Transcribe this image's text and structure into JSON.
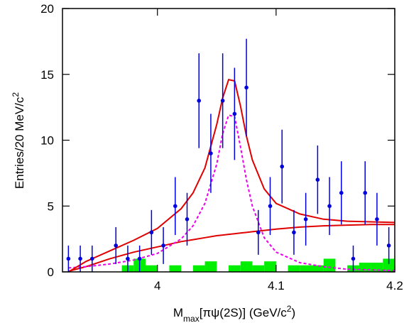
{
  "chart_data": {
    "type": "scatter",
    "xlabel_parts": [
      "M",
      "max",
      "[πψ(2S)] (GeV/c",
      "2",
      ")"
    ],
    "ylabel_parts": [
      "Entries/20 MeV/c",
      "2"
    ],
    "xlim": [
      3.92,
      4.2
    ],
    "ylim": [
      0,
      20
    ],
    "xticks": [
      4,
      4.1,
      4.2
    ],
    "yticks": [
      0,
      5,
      10,
      15,
      20
    ],
    "points": {
      "color": "#0000dd",
      "x": [
        3.925,
        3.935,
        3.945,
        3.965,
        3.975,
        3.985,
        3.995,
        4.005,
        4.015,
        4.025,
        4.035,
        4.045,
        4.055,
        4.065,
        4.075,
        4.085,
        4.095,
        4.105,
        4.115,
        4.125,
        4.135,
        4.145,
        4.155,
        4.165,
        4.175,
        4.185,
        4.195
      ],
      "values": [
        1,
        1,
        1,
        2,
        1,
        1,
        3,
        2,
        5,
        4,
        13,
        9,
        13,
        12,
        14,
        3,
        5,
        8,
        3,
        4,
        7,
        5,
        6,
        1,
        6,
        4,
        2
      ],
      "errors": [
        1,
        1,
        1,
        1.4,
        1,
        1,
        1.7,
        1.4,
        2.2,
        2,
        3.6,
        3,
        3.6,
        3.5,
        3.7,
        1.7,
        2.2,
        2.8,
        1.7,
        2,
        2.6,
        2.2,
        2.4,
        1,
        2.4,
        2,
        1.4
      ]
    },
    "histogram": {
      "color": "#00ee00",
      "bins": [
        3.97,
        3.98,
        3.99,
        4.0,
        4.01,
        4.02,
        4.03,
        4.04,
        4.05,
        4.06,
        4.07,
        4.08,
        4.09,
        4.1,
        4.11,
        4.12,
        4.13,
        4.14,
        4.15,
        4.16,
        4.17,
        4.18,
        4.19,
        4.2
      ],
      "counts": [
        0.5,
        1,
        0.5,
        0,
        0.5,
        0,
        0.5,
        0.8,
        0,
        0.5,
        0.8,
        0.5,
        0.8,
        0,
        0.5,
        0.5,
        0.5,
        1,
        0,
        0.5,
        0.7,
        0.7,
        1
      ]
    },
    "curve_x": [
      3.925,
      3.94,
      3.96,
      3.98,
      4.0,
      4.02,
      4.03,
      4.04,
      4.05,
      4.055,
      4.06,
      4.065,
      4.07,
      4.075,
      4.08,
      4.09,
      4.1,
      4.12,
      4.14,
      4.16,
      4.18,
      4.2
    ],
    "series": [
      {
        "color": "#e00000",
        "dashed": false,
        "values": [
          0.05,
          0.4,
          1.0,
          1.5,
          1.9,
          2.3,
          2.45,
          2.6,
          2.75,
          2.8,
          2.85,
          2.9,
          2.95,
          3.0,
          3.05,
          3.15,
          3.25,
          3.4,
          3.5,
          3.55,
          3.6,
          3.6
        ]
      },
      {
        "color": "#ee00ee",
        "dashed": true,
        "values": [
          0.3,
          0.4,
          0.6,
          0.9,
          1.4,
          2.5,
          3.5,
          5.2,
          8.2,
          10.5,
          11.9,
          11.8,
          9.5,
          7,
          5,
          2.6,
          1.5,
          0.7,
          0.4,
          0.2,
          0.15,
          0.1
        ]
      },
      {
        "color": "#e00000",
        "dashed": false,
        "values": [
          0,
          0.8,
          1.6,
          2.4,
          3.3,
          4.8,
          6,
          7.9,
          11.2,
          13.2,
          14.6,
          14.5,
          12.6,
          10.3,
          8.5,
          6.3,
          5.2,
          4.4,
          4.0,
          3.85,
          3.8,
          3.75
        ]
      }
    ]
  }
}
